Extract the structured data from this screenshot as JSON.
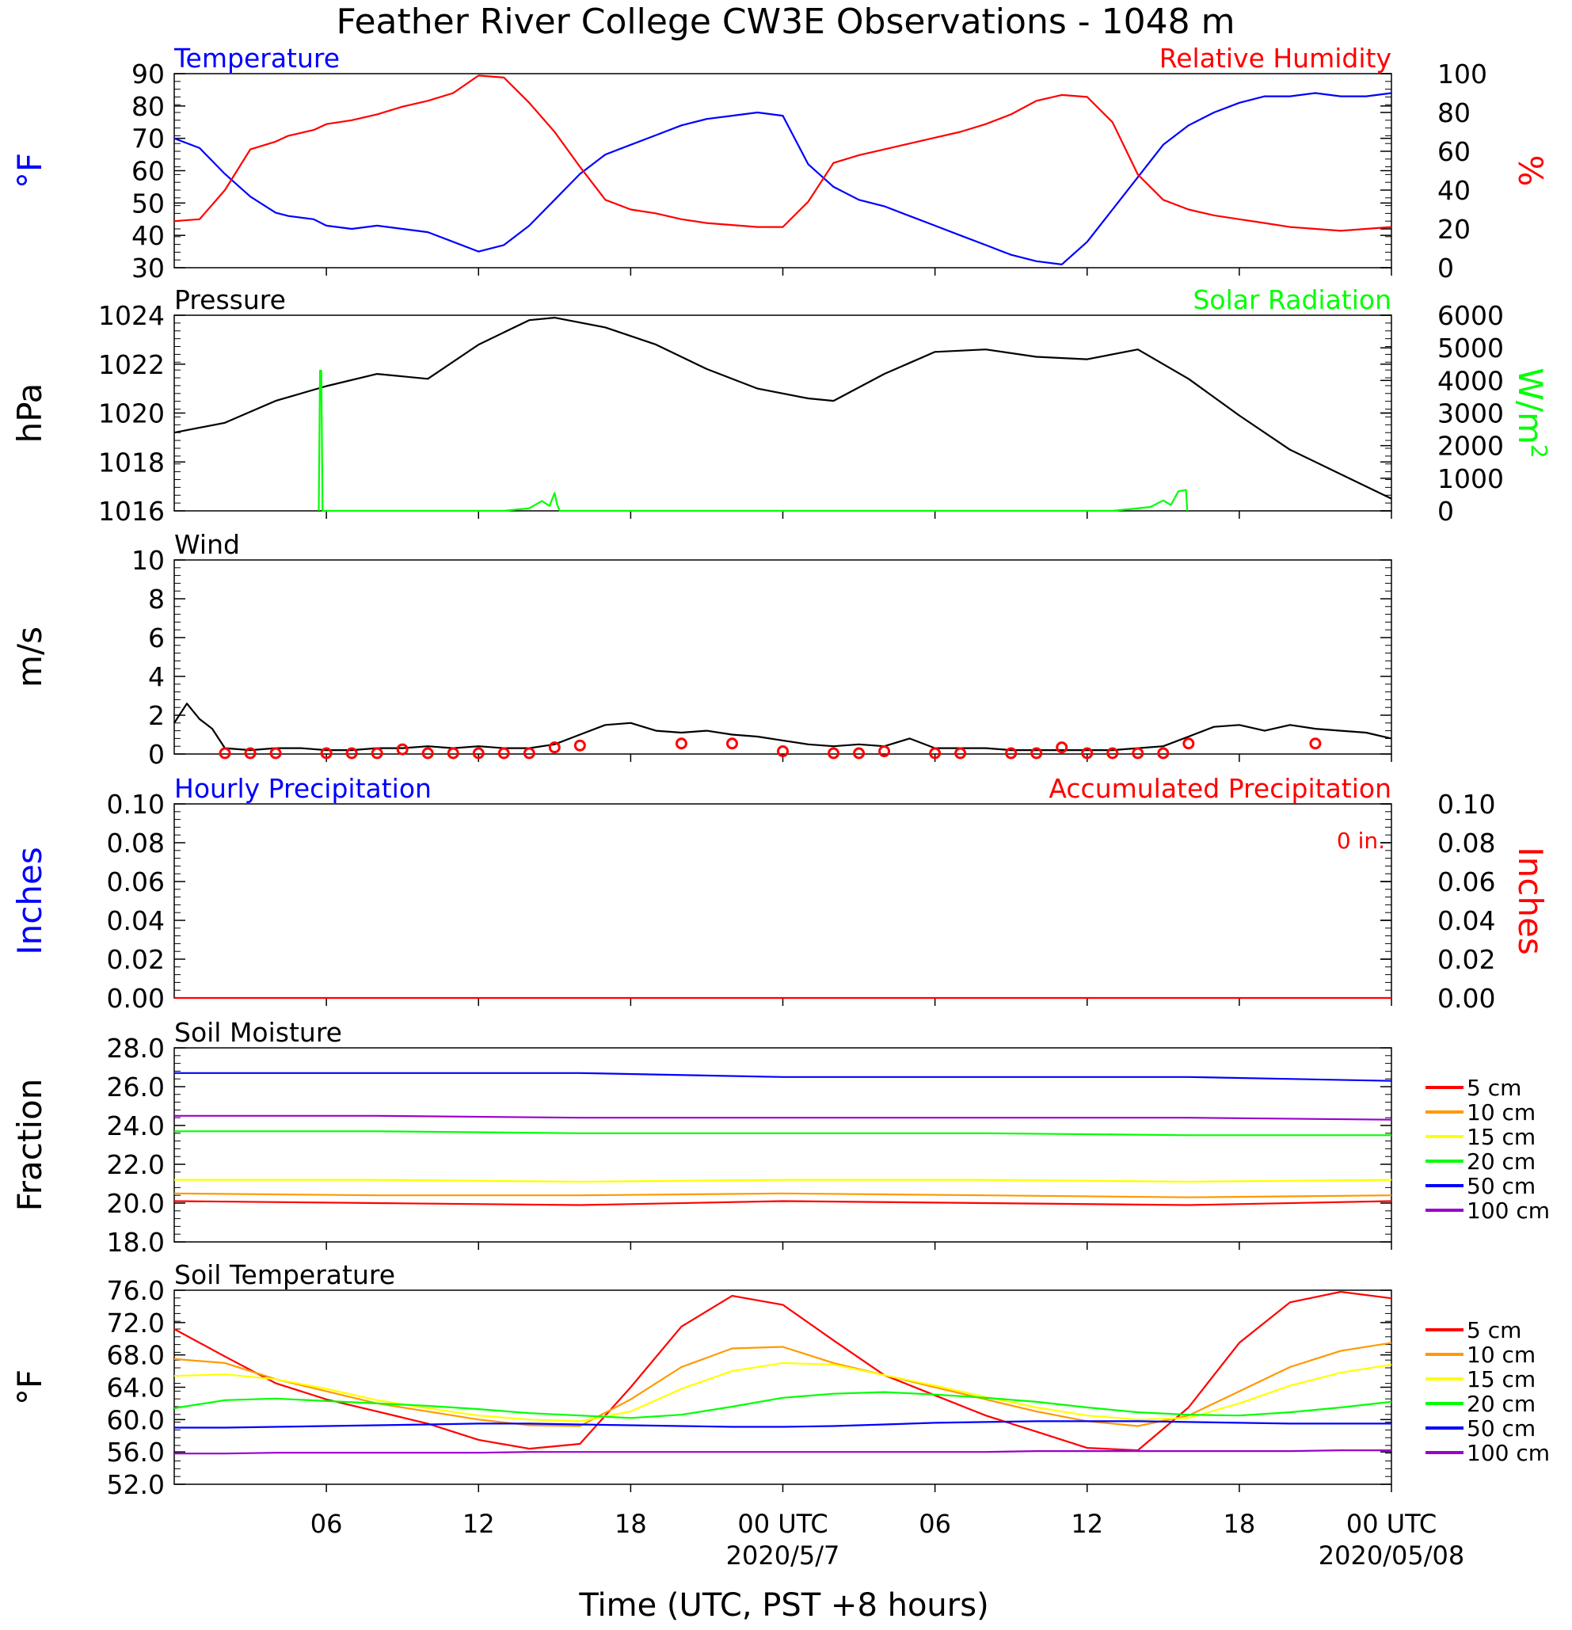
{
  "colors": {
    "blue": "#0000ff",
    "red": "#ff0000",
    "green": "#00ff00",
    "black": "#000000",
    "orange": "#ff9900",
    "yellow": "#ffff00",
    "purple": "#9900cc"
  },
  "figure": {
    "title": "Feather River College CW3E Observations - 1048 m",
    "xlabel": "Time (UTC, PST +8 hours)",
    "x_ticks": [
      "06",
      "12",
      "18",
      "00 UTC",
      "06",
      "12",
      "18",
      "00 UTC"
    ],
    "date_labels": [
      "2020/5/7",
      "2020/05/08"
    ]
  },
  "chart_data": [
    {
      "id": "temperature_humidity",
      "type": "line",
      "title_left": "Temperature",
      "title_right": "Relative Humidity",
      "ylabel_left": "°F",
      "ylabel_right": "%",
      "ylim_left": [
        30,
        90
      ],
      "ylim_right": [
        0,
        100
      ],
      "yticks_left": [
        "30",
        "40",
        "50",
        "60",
        "70",
        "80",
        "90"
      ],
      "yticks_right": [
        "0",
        "20",
        "40",
        "60",
        "80",
        "100"
      ],
      "x_hours": [
        1,
        2,
        3,
        4,
        5,
        5.5,
        6.5,
        7,
        8,
        9,
        10,
        11,
        12,
        13,
        14,
        15,
        16,
        17,
        18,
        19,
        20,
        21,
        22,
        23,
        24,
        25,
        26,
        27,
        28,
        29,
        30,
        31,
        32,
        33,
        34,
        35,
        36,
        37,
        38,
        39,
        40,
        41,
        42,
        43,
        44,
        45,
        46,
        47,
        48,
        49
      ],
      "series": [
        {
          "name": "Temperature",
          "color": "#0000ff",
          "axis": "left",
          "values": [
            70,
            67,
            59,
            52,
            47,
            46,
            45,
            43,
            42,
            43,
            42,
            41,
            38,
            35,
            37,
            43,
            51,
            59,
            65,
            68,
            71,
            74,
            76,
            77,
            78,
            77,
            62,
            55,
            51,
            49,
            46,
            43,
            40,
            37,
            34,
            32,
            31,
            38,
            48,
            58,
            68,
            74,
            78,
            81,
            83,
            83,
            84,
            83,
            83,
            84
          ]
        },
        {
          "name": "Relative Humidity",
          "color": "#ff0000",
          "axis": "right",
          "values": [
            24,
            25,
            40,
            61,
            65,
            68,
            71,
            74,
            76,
            79,
            83,
            86,
            90,
            99,
            98,
            85,
            70,
            52,
            35,
            30,
            28,
            25,
            23,
            22,
            21,
            21,
            34,
            54,
            58,
            61,
            64,
            67,
            70,
            74,
            79,
            86,
            89,
            88,
            75,
            48,
            35,
            30,
            27,
            25,
            23,
            21,
            20,
            19,
            20,
            21
          ]
        }
      ]
    },
    {
      "id": "pressure_solar",
      "type": "line",
      "title_left": "Pressure",
      "title_right": "Solar Radiation",
      "ylabel_left": "hPa",
      "ylabel_right": "W/m",
      "ylabel_right_sup": "2",
      "ylim_left": [
        1016,
        1024
      ],
      "ylim_right": [
        0,
        6000
      ],
      "yticks_left": [
        "1016",
        "1018",
        "1020",
        "1022",
        "1024"
      ],
      "yticks_right": [
        "0",
        "1000",
        "2000",
        "3000",
        "4000",
        "5000",
        "6000"
      ],
      "series": [
        {
          "name": "Pressure",
          "color": "#000000",
          "axis": "left",
          "x_hours": [
            1,
            3,
            5,
            7,
            9,
            11,
            13,
            15,
            16,
            18,
            20,
            22,
            24,
            26,
            27,
            29,
            31,
            33,
            35,
            37,
            39,
            41,
            43,
            45,
            47,
            49
          ],
          "values": [
            1019.2,
            1019.6,
            1020.5,
            1021.1,
            1021.6,
            1021.4,
            1022.8,
            1023.8,
            1023.9,
            1023.5,
            1022.8,
            1021.8,
            1021.0,
            1020.6,
            1020.5,
            1021.6,
            1022.5,
            1022.6,
            1022.3,
            1022.2,
            1022.6,
            1021.4,
            1019.9,
            1018.5,
            1017.5,
            1016.5
          ]
        },
        {
          "name": "Solar Radiation",
          "color": "#00ff00",
          "axis": "right",
          "x_hours": [
            6.7,
            6.75,
            6.8,
            6.85,
            14,
            15,
            15.5,
            15.8,
            16,
            16.1,
            16.2,
            31,
            38,
            39.5,
            40,
            40.3,
            40.6,
            40.9,
            40.95
          ],
          "values": [
            0,
            4300,
            4300,
            0,
            0,
            80,
            300,
            150,
            550,
            200,
            0,
            0,
            0,
            120,
            320,
            180,
            600,
            640,
            0
          ]
        }
      ]
    },
    {
      "id": "wind",
      "type": "line",
      "title_left": "Wind",
      "ylabel_left": "m/s",
      "ylim_left": [
        0,
        10
      ],
      "yticks_left": [
        "0",
        "2",
        "4",
        "6",
        "8",
        "10"
      ],
      "series": [
        {
          "name": "Wind",
          "color": "#000000",
          "axis": "left",
          "x_hours": [
            1,
            1.5,
            2,
            2.5,
            3,
            4,
            5,
            6,
            7,
            8,
            9,
            10,
            11,
            12,
            13,
            14,
            15,
            16,
            17,
            18,
            19,
            20,
            21,
            22,
            23,
            24,
            25,
            26,
            27,
            28,
            29,
            30,
            31,
            32,
            33,
            34,
            35,
            36,
            37,
            38,
            39,
            40,
            41,
            42,
            43,
            44,
            45,
            46,
            47,
            48,
            49
          ],
          "values": [
            1.6,
            2.6,
            1.8,
            1.3,
            0.3,
            0.2,
            0.3,
            0.3,
            0.2,
            0.2,
            0.3,
            0.3,
            0.4,
            0.3,
            0.4,
            0.3,
            0.3,
            0.5,
            1.0,
            1.5,
            1.6,
            1.2,
            1.1,
            1.2,
            1.0,
            0.9,
            0.7,
            0.5,
            0.4,
            0.5,
            0.4,
            0.8,
            0.3,
            0.3,
            0.3,
            0.2,
            0.2,
            0.2,
            0.2,
            0.2,
            0.3,
            0.4,
            0.9,
            1.4,
            1.5,
            1.2,
            1.5,
            1.3,
            1.2,
            1.1,
            0.8
          ]
        },
        {
          "name": "Wind Speed Markers",
          "color": "#ff0000",
          "axis": "left",
          "x_hours": [
            3,
            4,
            5,
            7,
            8,
            9,
            10,
            11,
            12,
            13,
            14,
            15,
            16,
            17,
            21,
            23,
            25,
            27,
            28,
            29,
            31,
            32,
            34,
            35,
            36,
            37,
            38,
            39,
            40,
            41,
            46
          ],
          "values": [
            0,
            0,
            0,
            0,
            0,
            0,
            0.2,
            0,
            0,
            0,
            0,
            0,
            0.3,
            0.4,
            0.5,
            0.5,
            0.1,
            0,
            0,
            0.1,
            0,
            0,
            0,
            0,
            0.3,
            0,
            0,
            0,
            0,
            0.5,
            0.5
          ]
        }
      ]
    },
    {
      "id": "precipitation",
      "type": "line",
      "title_left": "Hourly Precipitation",
      "title_right": "Accumulated Precipitation",
      "annotation": "0 in.",
      "ylabel_left": "Inches",
      "ylabel_right": "Inches",
      "ylim_left": [
        0,
        0.1
      ],
      "ylim_right": [
        0,
        0.1
      ],
      "yticks_left": [
        "0.00",
        "0.02",
        "0.04",
        "0.06",
        "0.08",
        "0.10"
      ],
      "yticks_right": [
        "0.00",
        "0.02",
        "0.04",
        "0.06",
        "0.08",
        "0.10"
      ],
      "series": [
        {
          "name": "Accumulated Precipitation",
          "color": "#ff0000",
          "axis": "right",
          "x_hours": [
            1,
            49
          ],
          "values": [
            0,
            0
          ]
        }
      ]
    },
    {
      "id": "soil_moisture",
      "type": "line",
      "title_left": "Soil Moisture",
      "ylabel_left": "Fraction",
      "ylim_left": [
        18,
        28
      ],
      "yticks_left": [
        "18.0",
        "20.0",
        "22.0",
        "24.0",
        "26.0",
        "28.0"
      ],
      "legend": [
        "5 cm",
        "10 cm",
        "15 cm",
        "20 cm",
        "50 cm",
        "100 cm"
      ],
      "x_hours": [
        1,
        9,
        17,
        25,
        33,
        41,
        49
      ],
      "series": [
        {
          "name": "5 cm",
          "color": "#ff0000",
          "values": [
            20.1,
            20.0,
            19.9,
            20.1,
            20.0,
            19.9,
            20.1
          ]
        },
        {
          "name": "10 cm",
          "color": "#ff9900",
          "values": [
            20.5,
            20.4,
            20.4,
            20.5,
            20.4,
            20.3,
            20.4
          ]
        },
        {
          "name": "15 cm",
          "color": "#ffff00",
          "values": [
            21.2,
            21.2,
            21.1,
            21.2,
            21.2,
            21.1,
            21.2
          ]
        },
        {
          "name": "20 cm",
          "color": "#00ff00",
          "values": [
            23.7,
            23.7,
            23.6,
            23.6,
            23.6,
            23.5,
            23.5
          ]
        },
        {
          "name": "50 cm",
          "color": "#0000ff",
          "values": [
            26.7,
            26.7,
            26.7,
            26.5,
            26.5,
            26.5,
            26.3
          ]
        },
        {
          "name": "100 cm",
          "color": "#9900cc",
          "values": [
            24.5,
            24.5,
            24.4,
            24.4,
            24.4,
            24.4,
            24.3
          ]
        }
      ]
    },
    {
      "id": "soil_temperature",
      "type": "line",
      "title_left": "Soil Temperature",
      "ylabel_left": "°F",
      "ylim_left": [
        52,
        76
      ],
      "yticks_left": [
        "52.0",
        "56.0",
        "60.0",
        "64.0",
        "68.0",
        "72.0",
        "76.0"
      ],
      "legend": [
        "5 cm",
        "10 cm",
        "15 cm",
        "20 cm",
        "50 cm",
        "100 cm"
      ],
      "x_hours": [
        1,
        3,
        5,
        7,
        9,
        11,
        13,
        15,
        17,
        19,
        21,
        23,
        25,
        27,
        29,
        31,
        33,
        35,
        37,
        39,
        41,
        43,
        45,
        47,
        49
      ],
      "series": [
        {
          "name": "5 cm",
          "color": "#ff0000",
          "values": [
            71.2,
            67.8,
            64.5,
            62.5,
            61.0,
            59.5,
            57.5,
            56.4,
            57.0,
            64.0,
            71.5,
            75.3,
            74.2,
            69.8,
            65.5,
            63.0,
            60.5,
            58.5,
            56.5,
            56.2,
            61.5,
            69.5,
            74.5,
            75.8,
            75.0
          ]
        },
        {
          "name": "10 cm",
          "color": "#ff9900",
          "values": [
            67.5,
            67.0,
            65.0,
            63.5,
            62.0,
            61.0,
            60.0,
            59.3,
            59.2,
            62.5,
            66.5,
            68.8,
            69.0,
            67.0,
            65.5,
            64.0,
            62.5,
            61.0,
            59.8,
            59.2,
            60.5,
            63.5,
            66.5,
            68.5,
            69.5
          ]
        },
        {
          "name": "15 cm",
          "color": "#ffff00",
          "values": [
            65.4,
            65.6,
            65.0,
            63.8,
            62.4,
            61.4,
            60.5,
            60.0,
            59.8,
            61.0,
            63.8,
            66.0,
            67.0,
            66.8,
            65.5,
            64.2,
            62.8,
            61.5,
            60.5,
            60.0,
            60.2,
            62.0,
            64.2,
            65.8,
            66.8
          ]
        },
        {
          "name": "20 cm",
          "color": "#00ff00",
          "values": [
            61.4,
            62.4,
            62.6,
            62.3,
            62.0,
            61.7,
            61.3,
            60.8,
            60.5,
            60.2,
            60.6,
            61.6,
            62.7,
            63.2,
            63.4,
            63.1,
            62.7,
            62.2,
            61.5,
            60.9,
            60.6,
            60.5,
            60.9,
            61.5,
            62.2
          ]
        },
        {
          "name": "50 cm",
          "color": "#0000ff",
          "values": [
            59.0,
            59.0,
            59.1,
            59.2,
            59.3,
            59.4,
            59.5,
            59.5,
            59.4,
            59.3,
            59.2,
            59.1,
            59.1,
            59.2,
            59.4,
            59.6,
            59.7,
            59.8,
            59.8,
            59.8,
            59.7,
            59.6,
            59.5,
            59.5,
            59.5
          ]
        },
        {
          "name": "100 cm",
          "color": "#9900cc",
          "values": [
            55.8,
            55.8,
            55.9,
            55.9,
            55.9,
            55.9,
            55.9,
            56.0,
            56.0,
            56.0,
            56.0,
            56.0,
            56.0,
            56.0,
            56.0,
            56.0,
            56.0,
            56.1,
            56.1,
            56.1,
            56.1,
            56.1,
            56.1,
            56.2,
            56.2
          ]
        }
      ]
    }
  ]
}
